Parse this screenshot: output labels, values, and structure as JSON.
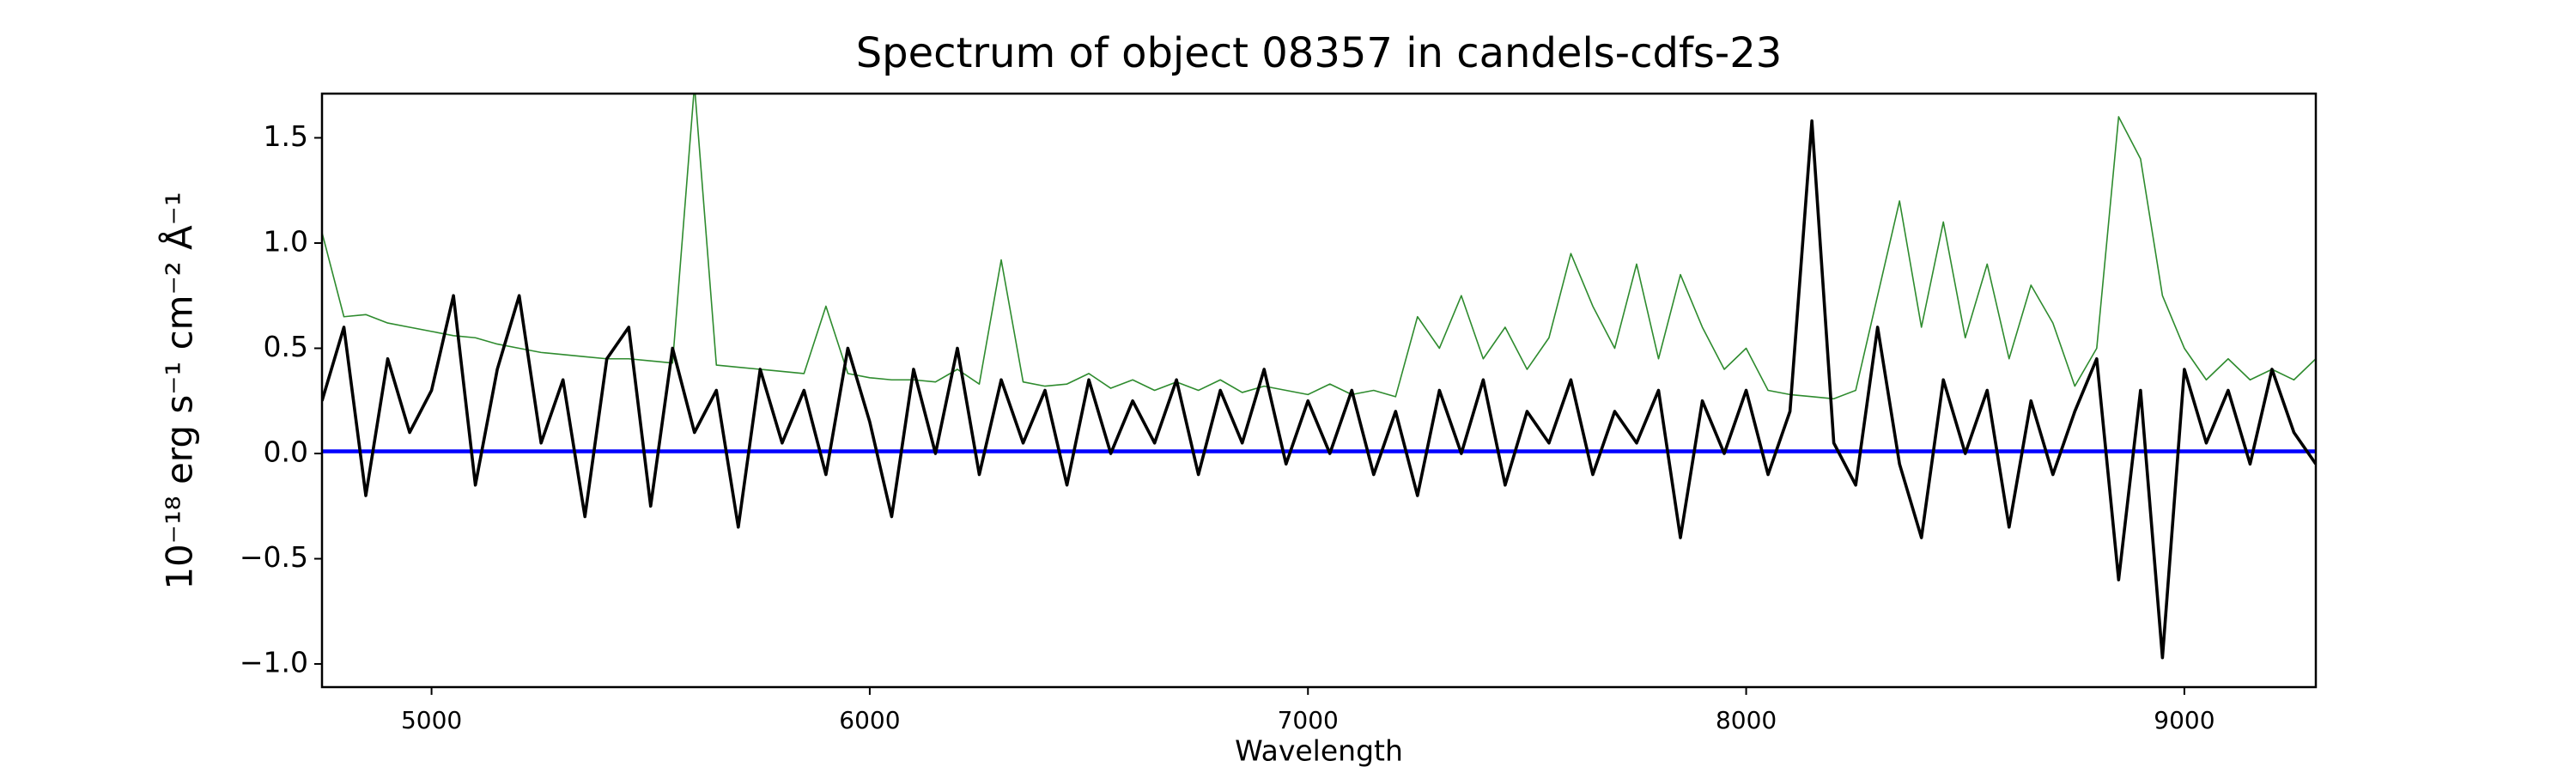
{
  "chart_data": {
    "type": "line",
    "title": "Spectrum of object 08357 in candels-cdfs-23",
    "xlabel": "Wavelength",
    "ylabel": "10⁻¹⁸ erg s⁻¹ cm⁻² Å⁻¹",
    "xlim": [
      4750,
      9300
    ],
    "ylim": [
      -1.11,
      1.71
    ],
    "xticks": [
      5000,
      6000,
      7000,
      8000,
      9000
    ],
    "yticks": [
      {
        "value": -1.0,
        "label": "−1.0"
      },
      {
        "value": -0.5,
        "label": "−0.5"
      },
      {
        "value": 0.0,
        "label": "0.0"
      },
      {
        "value": 0.5,
        "label": "0.5"
      },
      {
        "value": 1.0,
        "label": "1.0"
      },
      {
        "value": 1.5,
        "label": "1.5"
      }
    ],
    "grid": false,
    "x": [
      4750,
      4800,
      4850,
      4900,
      4950,
      5000,
      5050,
      5100,
      5150,
      5200,
      5250,
      5300,
      5350,
      5400,
      5450,
      5500,
      5550,
      5600,
      5650,
      5700,
      5750,
      5800,
      5850,
      5900,
      5950,
      6000,
      6050,
      6100,
      6150,
      6200,
      6250,
      6300,
      6350,
      6400,
      6450,
      6500,
      6550,
      6600,
      6650,
      6700,
      6750,
      6800,
      6850,
      6900,
      6950,
      7000,
      7050,
      7100,
      7150,
      7200,
      7250,
      7300,
      7350,
      7400,
      7450,
      7500,
      7550,
      7600,
      7650,
      7700,
      7750,
      7800,
      7850,
      7900,
      7950,
      8000,
      8050,
      8100,
      8150,
      8200,
      8250,
      8300,
      8350,
      8400,
      8450,
      8500,
      8550,
      8600,
      8650,
      8700,
      8750,
      8800,
      8850,
      8900,
      8950,
      9000,
      9050,
      9100,
      9150,
      9200,
      9250,
      9300
    ],
    "series": [
      {
        "color": "#2e8b2e",
        "values": [
          1.05,
          0.65,
          0.66,
          0.62,
          0.6,
          0.58,
          0.56,
          0.55,
          0.52,
          0.5,
          0.48,
          0.47,
          0.46,
          0.45,
          0.45,
          0.44,
          0.43,
          1.75,
          0.42,
          0.41,
          0.4,
          0.39,
          0.38,
          0.7,
          0.38,
          0.36,
          0.35,
          0.35,
          0.34,
          0.4,
          0.33,
          0.92,
          0.34,
          0.32,
          0.33,
          0.38,
          0.31,
          0.35,
          0.3,
          0.34,
          0.3,
          0.35,
          0.29,
          0.32,
          0.3,
          0.28,
          0.33,
          0.28,
          0.3,
          0.27,
          0.65,
          0.5,
          0.75,
          0.45,
          0.6,
          0.4,
          0.55,
          0.95,
          0.7,
          0.5,
          0.9,
          0.45,
          0.85,
          0.6,
          0.4,
          0.5,
          0.3,
          0.28,
          0.27,
          0.26,
          0.3,
          0.75,
          1.2,
          0.6,
          1.1,
          0.55,
          0.9,
          0.45,
          0.8,
          0.62,
          0.32,
          0.5,
          1.6,
          1.4,
          0.75,
          0.5,
          0.35,
          0.45,
          0.35,
          0.4,
          0.35,
          0.45
        ]
      },
      {
        "color": "#0000ff",
        "values": [
          0.01,
          0.01,
          0.01,
          0.01,
          0.01,
          0.01,
          0.01,
          0.01,
          0.01,
          0.01,
          0.01,
          0.01,
          0.01,
          0.01,
          0.01,
          0.01,
          0.01,
          0.01,
          0.01,
          0.01,
          0.01,
          0.01,
          0.01,
          0.01,
          0.01,
          0.01,
          0.01,
          0.01,
          0.01,
          0.01,
          0.01,
          0.01,
          0.01,
          0.01,
          0.01,
          0.01,
          0.01,
          0.01,
          0.01,
          0.01,
          0.01,
          0.01,
          0.01,
          0.01,
          0.01,
          0.01,
          0.01,
          0.01,
          0.01,
          0.01,
          0.01,
          0.01,
          0.01,
          0.01,
          0.01,
          0.01,
          0.01,
          0.01,
          0.01,
          0.01,
          0.01,
          0.01,
          0.01,
          0.01,
          0.01,
          0.01,
          0.01,
          0.01,
          0.01,
          0.01,
          0.01,
          0.01,
          0.01,
          0.01,
          0.01,
          0.01,
          0.01,
          0.01,
          0.01,
          0.01,
          0.01,
          0.01,
          0.01,
          0.01,
          0.01,
          0.01,
          0.01,
          0.01,
          0.01,
          0.01,
          0.01,
          0.01
        ]
      },
      {
        "color": "#000000",
        "values": [
          0.25,
          0.6,
          -0.2,
          0.45,
          0.1,
          0.3,
          0.75,
          -0.15,
          0.4,
          0.75,
          0.05,
          0.35,
          -0.3,
          0.45,
          0.6,
          -0.25,
          0.5,
          0.1,
          0.3,
          -0.35,
          0.4,
          0.05,
          0.3,
          -0.1,
          0.5,
          0.15,
          -0.3,
          0.4,
          0.0,
          0.5,
          -0.1,
          0.35,
          0.05,
          0.3,
          -0.15,
          0.35,
          0.0,
          0.25,
          0.05,
          0.35,
          -0.1,
          0.3,
          0.05,
          0.4,
          -0.05,
          0.25,
          0.0,
          0.3,
          -0.1,
          0.2,
          -0.2,
          0.3,
          0.0,
          0.35,
          -0.15,
          0.2,
          0.05,
          0.35,
          -0.1,
          0.2,
          0.05,
          0.3,
          -0.4,
          0.25,
          0.0,
          0.3,
          -0.1,
          0.2,
          1.58,
          0.05,
          -0.15,
          0.6,
          -0.05,
          -0.4,
          0.35,
          0.0,
          0.3,
          -0.35,
          0.25,
          -0.1,
          0.2,
          0.45,
          -0.6,
          0.3,
          -0.97,
          0.4,
          0.05,
          0.3,
          -0.05,
          0.4,
          0.1,
          -0.05
        ]
      }
    ]
  }
}
